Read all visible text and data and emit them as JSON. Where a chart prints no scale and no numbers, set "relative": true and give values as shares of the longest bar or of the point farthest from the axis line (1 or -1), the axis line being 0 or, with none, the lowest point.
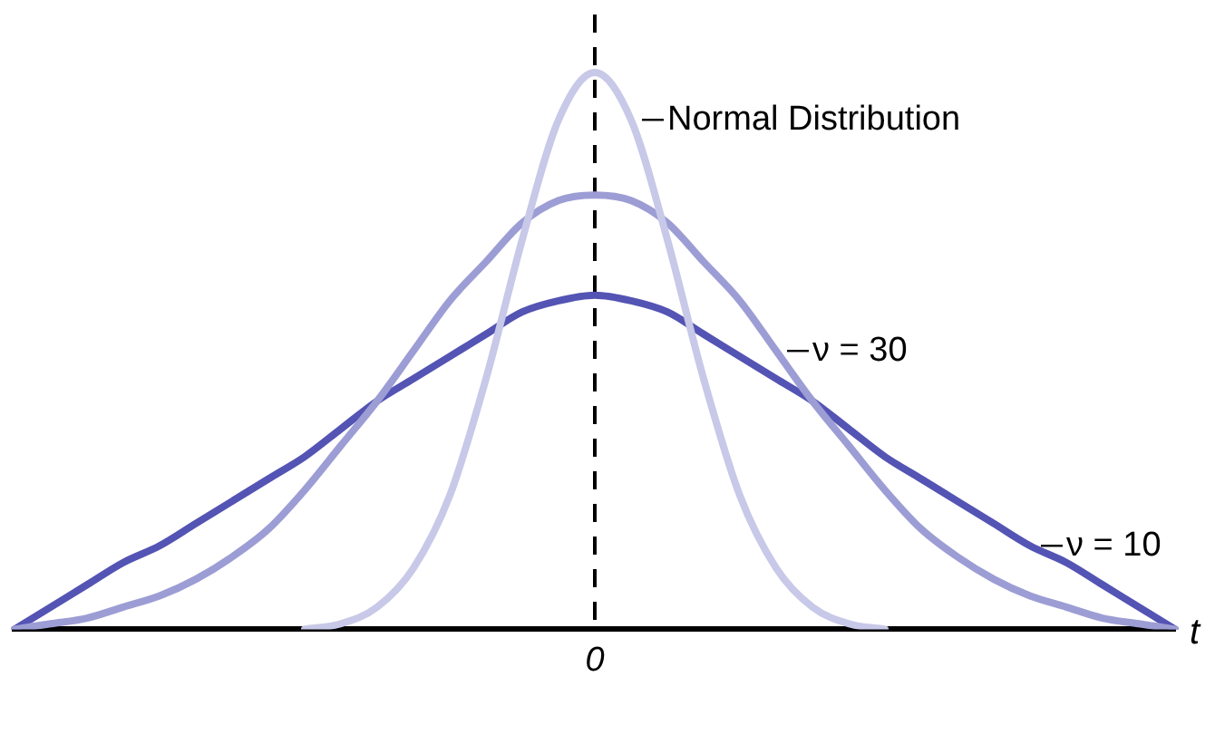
{
  "chart_data": {
    "type": "line",
    "relative": true,
    "xlabel": "t",
    "legend": false,
    "grid": false,
    "marker": "none",
    "line_style": "solid",
    "categories": [
      null,
      null,
      null,
      null,
      null,
      null,
      null,
      null,
      null,
      null,
      null,
      null,
      null,
      null,
      null,
      null,
      null,
      null,
      null,
      null,
      null,
      null,
      null,
      null,
      null,
      null,
      null,
      null,
      null,
      null,
      null,
      null,
      null
    ],
    "series": [
      {
        "name": "Normal Distribution",
        "color": "#c8c8e8",
        "values": [
          null,
          null,
          null,
          null,
          null,
          null,
          null,
          null,
          0,
          0.01,
          0.04,
          0.11,
          0.24,
          0.45,
          0.7,
          0.915,
          1,
          0.915,
          0.7,
          0.45,
          0.24,
          0.11,
          0.04,
          0.01,
          0,
          null,
          null,
          null,
          null,
          null,
          null,
          null,
          null
        ]
      },
      {
        "name": "ν = 30",
        "color": "#9d9dd5",
        "values": [
          0,
          0.01,
          0.02,
          0.04,
          0.06,
          0.09,
          0.13,
          0.18,
          0.25,
          0.33,
          0.41,
          0.5,
          0.59,
          0.66,
          0.73,
          0.77,
          0.78,
          0.77,
          0.73,
          0.66,
          0.59,
          0.5,
          0.41,
          0.33,
          0.25,
          0.18,
          0.13,
          0.09,
          0.06,
          0.04,
          0.02,
          0.01,
          0
        ]
      },
      {
        "name": "ν = 10",
        "color": "#5454b4",
        "values": [
          0,
          0.04,
          0.08,
          0.12,
          0.15,
          0.19,
          0.23,
          0.27,
          0.31,
          0.36,
          0.41,
          0.45,
          0.49,
          0.53,
          0.57,
          0.59,
          0.6,
          0.59,
          0.57,
          0.53,
          0.49,
          0.45,
          0.41,
          0.36,
          0.31,
          0.27,
          0.23,
          0.19,
          0.15,
          0.12,
          0.08,
          0.04,
          0
        ]
      }
    ],
    "ref_lines": [
      {
        "axis": "x",
        "label": "0",
        "color": "#000000",
        "line_style": "dashed"
      }
    ]
  }
}
